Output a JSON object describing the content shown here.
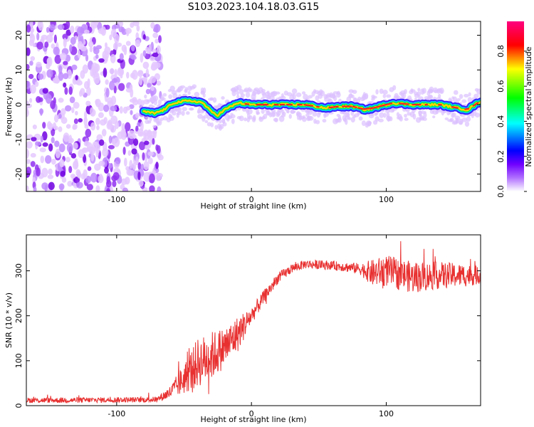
{
  "figure": {
    "title": "S103.2023.104.18.03.G15"
  },
  "chart_data": [
    {
      "type": "heatmap",
      "title": "",
      "xlabel": "Height of straight line (km)",
      "ylabel": "Frequency (Hz)",
      "xlim": [
        -167,
        170
      ],
      "ylim": [
        -25,
        24
      ],
      "xticks": [
        -100,
        0,
        100
      ],
      "yticks": [
        -20,
        -10,
        0,
        10,
        20
      ],
      "ytick_labels": [
        "-20",
        "-10",
        "0",
        "10",
        "20"
      ],
      "colorbar": {
        "label": "Normalized spectral amplitude",
        "range": [
          0,
          0.97
        ],
        "ticks": [
          0.0,
          0.2,
          0.4,
          0.6,
          0.8
        ],
        "tick_labels": [
          "0.0",
          "0.2",
          "0.4",
          "0.6",
          "0.8"
        ],
        "colormap": [
          "#ffffff",
          "#8a00ff",
          "#0000ff",
          "#00ffff",
          "#00ff00",
          "#ffff00",
          "#ff0000",
          "#ff0080"
        ]
      },
      "noise_region": {
        "x_start": -167,
        "x_end": -75,
        "description": "scattered low-amplitude noise"
      },
      "signal_ridge": {
        "x": [
          -80,
          -72,
          -65,
          -58,
          -50,
          -42,
          -36,
          -30,
          -25,
          -20,
          -15,
          -10,
          0,
          20,
          40,
          55,
          65,
          75,
          85,
          95,
          105,
          120,
          140,
          160,
          170
        ],
        "y": [
          -2,
          -2.5,
          -1.5,
          0.5,
          1,
          1,
          0.5,
          -2,
          -3,
          -1.5,
          -0.5,
          0.5,
          0,
          0,
          0,
          -1,
          -0.5,
          -0.5,
          -1.5,
          -0.5,
          0.5,
          0,
          0,
          -1.5,
          1
        ]
      }
    },
    {
      "type": "line",
      "title": "",
      "xlabel": "Height of straight line (km)",
      "ylabel": "SNR (10 * v/v)",
      "xlim": [
        -167,
        170
      ],
      "ylim": [
        0,
        380
      ],
      "xticks": [
        -100,
        0,
        100
      ],
      "yticks": [
        0,
        100,
        200,
        300
      ],
      "color": "#e83030",
      "series": [
        {
          "x": [
            -167,
            -140,
            -100,
            -80,
            -70,
            -60,
            -50,
            -40,
            -30,
            -20,
            -10,
            0,
            10,
            20,
            30,
            40,
            60,
            80,
            90,
            100,
            120,
            140,
            160,
            170
          ],
          "y": [
            12,
            12,
            13,
            13,
            14,
            30,
            60,
            95,
            110,
            130,
            160,
            200,
            245,
            285,
            305,
            315,
            312,
            305,
            295,
            300,
            285,
            290,
            290,
            290
          ],
          "noise": [
            6,
            6,
            6,
            6,
            6,
            15,
            35,
            55,
            55,
            45,
            40,
            20,
            15,
            12,
            10,
            10,
            10,
            12,
            30,
            35,
            35,
            30,
            25,
            20
          ]
        }
      ]
    }
  ]
}
